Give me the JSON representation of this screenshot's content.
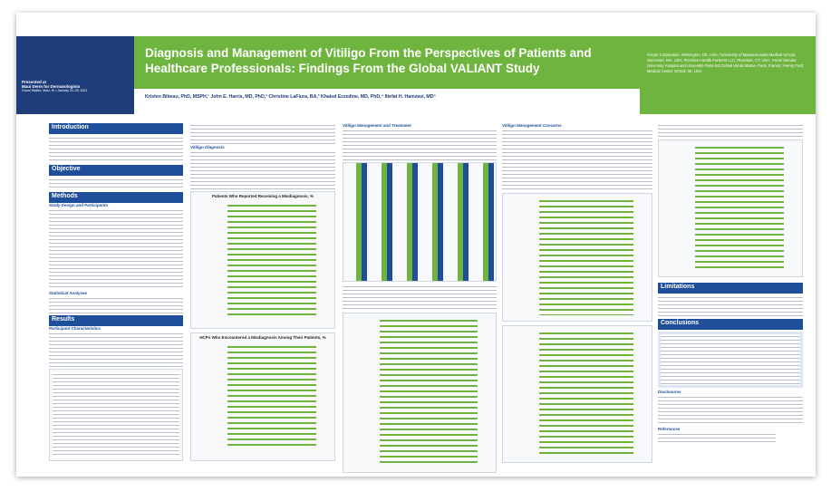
{
  "header": {
    "presented_at": "Presented at",
    "meeting": "Maui Derm for Dermatologists",
    "location": "Grand Wailea, Maui, HI • January 24–28, 2022",
    "title": "Diagnosis and Management of Vitiligo From the Perspectives of Patients and Healthcare Professionals: Findings From the Global VALIANT Study",
    "authors": "Kristen Bibeau, PhD, MSPH,¹ John E. Harris, MD, PhD,² Christine LaFiura, BA,³ Khaled Ezzedine, MD, PhD,⁴ Iltefat H. Hamzavi, MD⁵",
    "affiliations": "¹Incyte Corporation, Wilmington, DE, USA; ²University of Massachusetts Medical School, Worcester, MA, USA; ³Envision Health Partners LLC, Riverside, CT, USA; ⁴Henri Mondor University Hospital and Université Paris-Est Créteil Val de Marne, Paris, France; ⁵Henry Ford Medical Center, Detroit, MI, USA"
  },
  "sections": {
    "introduction": "Introduction",
    "objective": "Objective",
    "methods": "Methods",
    "results": "Results",
    "limitations": "Limitations",
    "conclusions": "Conclusions",
    "disclosures": "Disclosures",
    "references": "References"
  },
  "subheadings": [
    "Study Design and Participants",
    "Statistical Analyses",
    "Participant Characteristics",
    "Vitiligo Diagnosis",
    "Vitiligo Management and Treatment",
    "Vitiligo Management Concerns"
  ],
  "figures": [
    "Patients Who Reported Receiving a Misdiagnosis, %",
    "HCPs Who Encountered a Misdiagnosis Among Their Patients, %"
  ]
}
